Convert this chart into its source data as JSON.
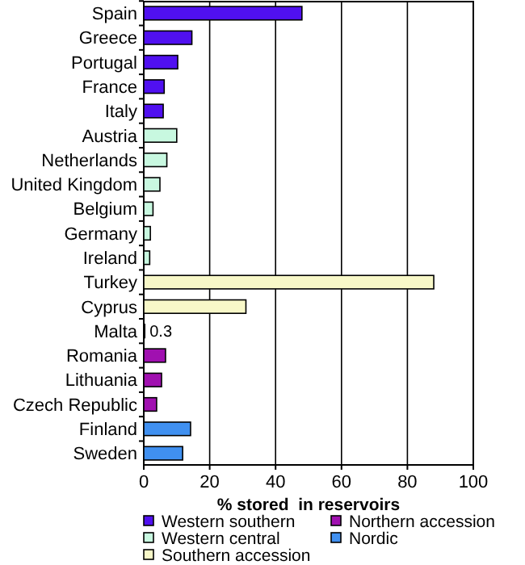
{
  "chart_data": {
    "type": "bar",
    "orientation": "horizontal",
    "categories": [
      "Spain",
      "Greece",
      "Portugal",
      "France",
      "Italy",
      "Austria",
      "Netherlands",
      "United Kingdom",
      "Belgium",
      "Germany",
      "Ireland",
      "Turkey",
      "Cyprus",
      "Malta",
      "Romania",
      "Lithuania",
      "Czech Republic",
      "Finland",
      "Sweden"
    ],
    "series": [
      {
        "name": "Western southern",
        "color": "#5010f0",
        "values": [
          48,
          14.6,
          10.3,
          6.2,
          5.9,
          null,
          null,
          null,
          null,
          null,
          null,
          null,
          null,
          null,
          null,
          null,
          null,
          null,
          null
        ]
      },
      {
        "name": "Western central",
        "color": "#c8f8e0",
        "values": [
          null,
          null,
          null,
          null,
          null,
          10,
          7,
          4.9,
          2.8,
          2,
          1.8,
          null,
          null,
          null,
          null,
          null,
          null,
          null,
          null
        ]
      },
      {
        "name": "Southern accession",
        "color": "#f8f8c8",
        "values": [
          null,
          null,
          null,
          null,
          null,
          null,
          null,
          null,
          null,
          null,
          null,
          88,
          31,
          0.3,
          null,
          null,
          null,
          null,
          null
        ],
        "value_labels": [
          null,
          null,
          null,
          null,
          null,
          null,
          null,
          null,
          null,
          null,
          null,
          null,
          null,
          "0.3",
          null,
          null,
          null,
          null,
          null
        ]
      },
      {
        "name": "Northern accession",
        "color": "#a010b0",
        "values": [
          null,
          null,
          null,
          null,
          null,
          null,
          null,
          null,
          null,
          null,
          null,
          null,
          null,
          null,
          6.6,
          5.4,
          3.9,
          null,
          null
        ]
      },
      {
        "name": "Nordic",
        "color": "#4090f0",
        "values": [
          null,
          null,
          null,
          null,
          null,
          null,
          null,
          null,
          null,
          null,
          null,
          null,
          null,
          null,
          null,
          null,
          null,
          14.2,
          11.8
        ]
      }
    ],
    "xlim": [
      0,
      100
    ],
    "xticks": [
      0,
      20,
      40,
      60,
      80,
      100
    ],
    "xlabel": "% stored  in reservoirs",
    "grid": "x",
    "legend": "bottom"
  }
}
